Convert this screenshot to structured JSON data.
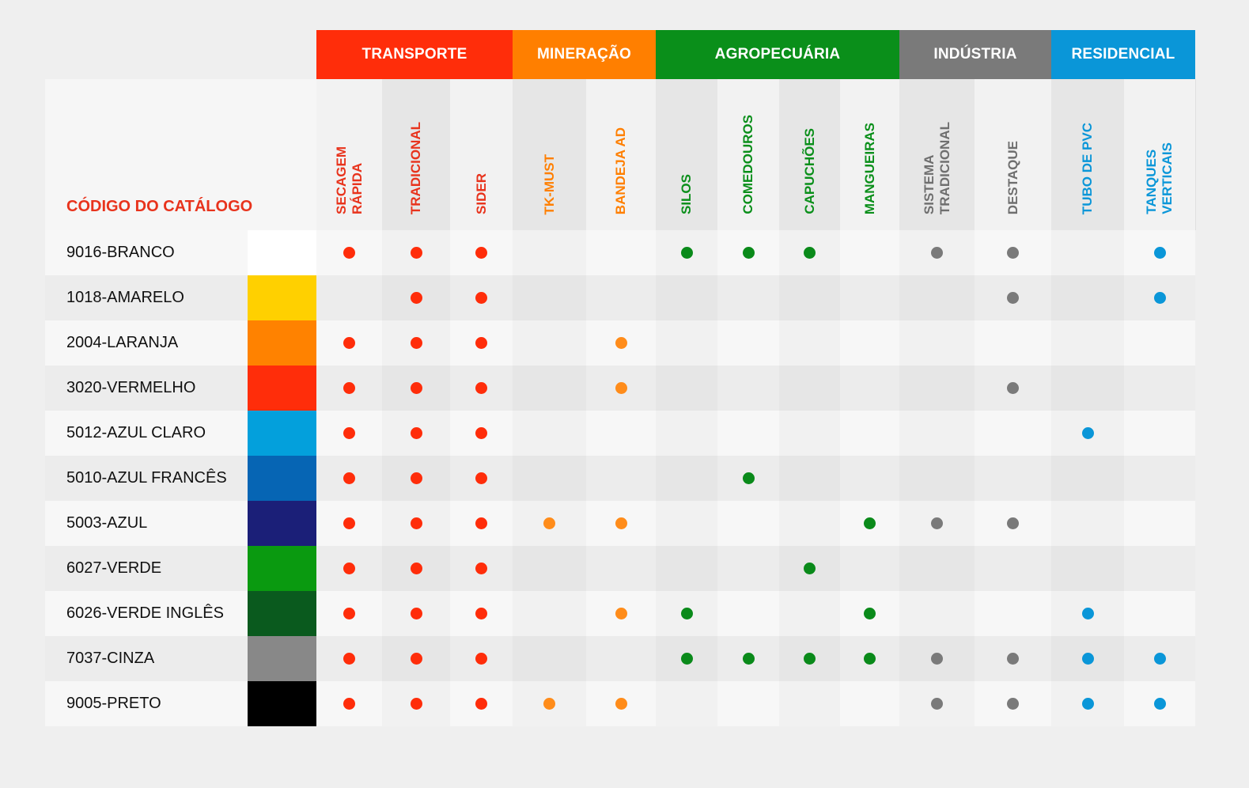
{
  "catalog_label": "CÓDIGO DO CATÁLOGO",
  "categories": [
    {
      "name": "TRANSPORTE",
      "color": "#ff2d0a",
      "span": [
        0,
        2
      ]
    },
    {
      "name": "MINERAÇÃO",
      "color": "#ff7f00",
      "span": [
        3,
        4
      ]
    },
    {
      "name": "AGROPECUÁRIA",
      "color": "#0a8f1a",
      "span": [
        5,
        8
      ]
    },
    {
      "name": "INDÚSTRIA",
      "color": "#7a7a7a",
      "span": [
        9,
        10
      ]
    },
    {
      "name": "RESIDENCIAL",
      "color": "#0a96d8",
      "span": [
        11,
        12
      ]
    }
  ],
  "columns": [
    {
      "label": "SECAGEM\nRÁPIDA",
      "category": 0
    },
    {
      "label": "TRADICIONAL",
      "category": 0
    },
    {
      "label": "SIDER",
      "category": 0
    },
    {
      "label": "TK-MUST",
      "category": 1
    },
    {
      "label": "BANDEJA AD",
      "category": 1
    },
    {
      "label": "SILOS",
      "category": 2
    },
    {
      "label": "COMEDOUROS",
      "category": 2
    },
    {
      "label": "CAPUCHÕES",
      "category": 2
    },
    {
      "label": "MANGUEIRAS",
      "category": 2
    },
    {
      "label": "SISTEMA\nTRADICIONAL",
      "category": 3
    },
    {
      "label": "DESTAQUE",
      "category": 3
    },
    {
      "label": "TUBO DE PVC",
      "category": 4
    },
    {
      "label": "TANQUES\nVERTICAIS",
      "category": 4
    }
  ],
  "rows": [
    {
      "code": "9016-BRANCO",
      "swatch": "#ffffff",
      "dots": [
        1,
        1,
        1,
        0,
        0,
        1,
        1,
        1,
        0,
        1,
        1,
        0,
        1
      ]
    },
    {
      "code": "1018-AMARELO",
      "swatch": "#ffd000",
      "dots": [
        0,
        1,
        1,
        0,
        0,
        0,
        0,
        0,
        0,
        0,
        1,
        0,
        1
      ]
    },
    {
      "code": "2004-LARANJA",
      "swatch": "#ff8200",
      "dots": [
        1,
        1,
        1,
        0,
        1,
        0,
        0,
        0,
        0,
        0,
        0,
        0,
        0
      ]
    },
    {
      "code": "3020-VERMELHO",
      "swatch": "#ff2d0a",
      "dots": [
        1,
        1,
        1,
        0,
        1,
        0,
        0,
        0,
        0,
        0,
        1,
        0,
        0
      ]
    },
    {
      "code": "5012-AZUL CLARO",
      "swatch": "#03a0dc",
      "dots": [
        1,
        1,
        1,
        0,
        0,
        0,
        0,
        0,
        0,
        0,
        0,
        1,
        0
      ]
    },
    {
      "code": "5010-AZUL FRANCÊS",
      "swatch": "#0665b4",
      "dots": [
        1,
        1,
        1,
        0,
        0,
        0,
        1,
        0,
        0,
        0,
        0,
        0,
        0
      ]
    },
    {
      "code": "5003-AZUL",
      "swatch": "#1b1f78",
      "dots": [
        1,
        1,
        1,
        1,
        1,
        0,
        0,
        0,
        1,
        1,
        1,
        0,
        0
      ]
    },
    {
      "code": "6027-VERDE",
      "swatch": "#0a9a10",
      "dots": [
        1,
        1,
        1,
        0,
        0,
        0,
        0,
        1,
        0,
        0,
        0,
        0,
        0
      ]
    },
    {
      "code": "6026-VERDE INGLÊS",
      "swatch": "#0a5a1e",
      "dots": [
        1,
        1,
        1,
        0,
        1,
        1,
        0,
        0,
        1,
        0,
        0,
        1,
        0
      ]
    },
    {
      "code": "7037-CINZA",
      "swatch": "#888888",
      "dots": [
        1,
        1,
        1,
        0,
        0,
        1,
        1,
        1,
        1,
        1,
        1,
        1,
        1
      ]
    },
    {
      "code": "9005-PRETO",
      "swatch": "#000000",
      "dots": [
        1,
        1,
        1,
        1,
        1,
        0,
        0,
        0,
        0,
        1,
        1,
        1,
        1
      ]
    }
  ],
  "colors": {
    "text_red": "#e8331c",
    "text_orange": "#ff7f00",
    "text_green": "#0a8f1a",
    "text_gray": "#6f6f6f",
    "text_blue": "#0a96d8",
    "dot_red": "#ff2d0a",
    "dot_orange": "#ff8c1a",
    "dot_green": "#0a8a1a",
    "dot_gray": "#7a7a7a",
    "dot_blue": "#0a96d8"
  }
}
